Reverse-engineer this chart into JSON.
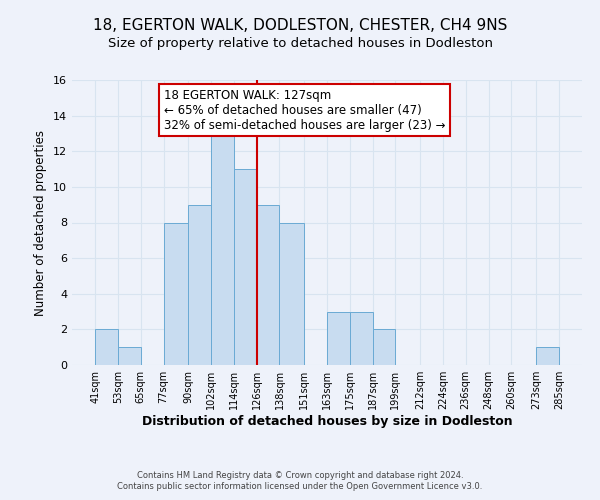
{
  "title": "18, EGERTON WALK, DODLESTON, CHESTER, CH4 9NS",
  "subtitle": "Size of property relative to detached houses in Dodleston",
  "xlabel": "Distribution of detached houses by size in Dodleston",
  "ylabel": "Number of detached properties",
  "bin_edges": [
    41,
    53,
    65,
    77,
    90,
    102,
    114,
    126,
    138,
    151,
    163,
    175,
    187,
    199,
    212,
    224,
    236,
    248,
    260,
    273,
    285
  ],
  "counts": [
    2,
    1,
    0,
    8,
    9,
    13,
    11,
    9,
    8,
    0,
    3,
    3,
    2,
    0,
    0,
    0,
    0,
    0,
    0,
    1
  ],
  "tick_labels": [
    "41sqm",
    "53sqm",
    "65sqm",
    "77sqm",
    "90sqm",
    "102sqm",
    "114sqm",
    "126sqm",
    "138sqm",
    "151sqm",
    "163sqm",
    "175sqm",
    "187sqm",
    "199sqm",
    "212sqm",
    "224sqm",
    "236sqm",
    "248sqm",
    "260sqm",
    "273sqm",
    "285sqm"
  ],
  "bar_color": "#c8dcf0",
  "bar_edge_color": "#6aaad4",
  "vline_x": 126,
  "vline_color": "#cc0000",
  "annotation_line1": "18 EGERTON WALK: 127sqm",
  "annotation_line2": "← 65% of detached houses are smaller (47)",
  "annotation_line3": "32% of semi-detached houses are larger (23) →",
  "annotation_box_edge_color": "#cc0000",
  "ylim": [
    0,
    16
  ],
  "yticks": [
    0,
    2,
    4,
    6,
    8,
    10,
    12,
    14,
    16
  ],
  "grid_color": "#d8e4f0",
  "background_color": "#eef2fa",
  "footer_line1": "Contains HM Land Registry data © Crown copyright and database right 2024.",
  "footer_line2": "Contains public sector information licensed under the Open Government Licence v3.0.",
  "title_fontsize": 11,
  "subtitle_fontsize": 9.5,
  "xlabel_fontsize": 9,
  "ylabel_fontsize": 8.5,
  "tick_fontsize": 7,
  "annotation_fontsize": 8.5,
  "footer_fontsize": 6
}
